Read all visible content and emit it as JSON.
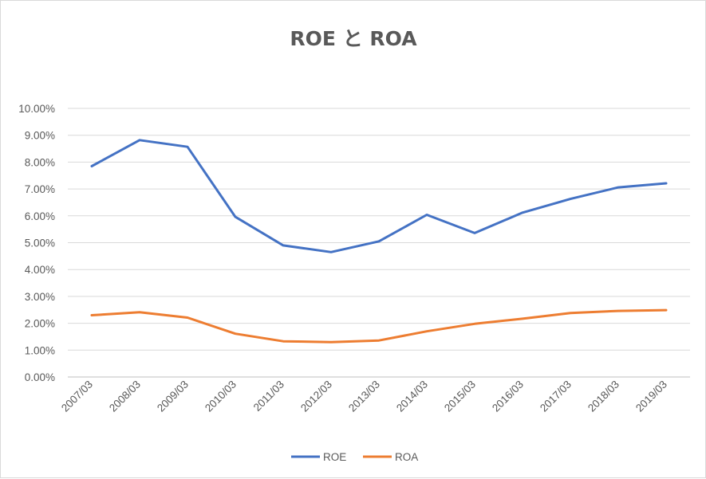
{
  "chart_data": {
    "type": "line",
    "title": "ROE と ROA",
    "categories": [
      "2007/03",
      "2008/03",
      "2009/03",
      "2010/03",
      "2011/03",
      "2012/03",
      "2013/03",
      "2014/03",
      "2015/03",
      "2016/03",
      "2017/03",
      "2018/03",
      "2019/03"
    ],
    "series": [
      {
        "name": "ROE",
        "color": "#4472c4",
        "values": [
          7.85,
          8.82,
          8.57,
          5.96,
          4.9,
          4.65,
          5.05,
          6.04,
          5.36,
          6.12,
          6.63,
          7.06,
          7.21
        ]
      },
      {
        "name": "ROA",
        "color": "#ed7d31",
        "values": [
          2.3,
          2.41,
          2.21,
          1.61,
          1.33,
          1.3,
          1.36,
          1.7,
          1.98,
          2.17,
          2.38,
          2.46,
          2.49
        ]
      }
    ],
    "y_ticks": [
      "0.00%",
      "1.00%",
      "2.00%",
      "3.00%",
      "4.00%",
      "5.00%",
      "6.00%",
      "7.00%",
      "8.00%",
      "9.00%",
      "10.00%"
    ],
    "ylim": [
      0,
      10
    ],
    "grid": true,
    "legend_position": "bottom"
  }
}
